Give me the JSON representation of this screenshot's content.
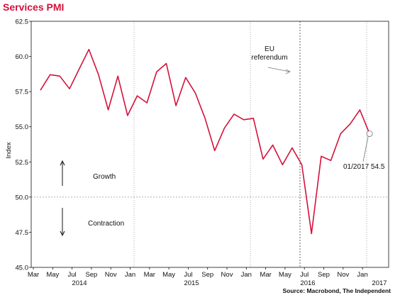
{
  "title": "Services PMI",
  "colors": {
    "title": "#d4123a",
    "line": "#d4123a",
    "grid": "#999999",
    "axis": "#111111"
  },
  "chart_data": {
    "type": "line",
    "ylabel": "Index",
    "ylim": [
      45.0,
      62.5
    ],
    "yticks": [
      "45.0",
      "47.5",
      "50.0",
      "52.5",
      "55.0",
      "57.5",
      "60.0",
      "62.5"
    ],
    "xticks": [
      "Mar",
      "May",
      "Jul",
      "Sep",
      "Nov",
      "Jan",
      "Mar",
      "May",
      "Jul",
      "Sep",
      "Nov",
      "Jan",
      "Mar",
      "May",
      "Jul",
      "Sep",
      "Nov",
      "Jan"
    ],
    "year_labels": [
      "2014",
      "2015",
      "2016",
      "2017"
    ],
    "grid": "y",
    "series": [
      {
        "values": [
          57.6,
          58.7,
          58.6,
          57.7,
          59.1,
          60.5,
          58.7,
          56.2,
          58.6,
          55.8,
          57.2,
          56.7,
          58.9,
          59.5,
          56.5,
          58.5,
          57.4,
          55.6,
          53.3,
          54.9,
          55.9,
          55.5,
          55.6,
          52.7,
          53.7,
          52.3,
          53.5,
          52.3,
          47.4,
          52.9,
          52.6,
          54.5,
          55.2,
          56.2,
          54.5
        ]
      }
    ],
    "annotations": {
      "growth": "Growth",
      "contraction": "Contraction",
      "referendum_line1": "EU",
      "referendum_line2": "referendum",
      "last_point": "01/2017 54.5"
    },
    "source": "Source: Macrobond, The Independent"
  }
}
